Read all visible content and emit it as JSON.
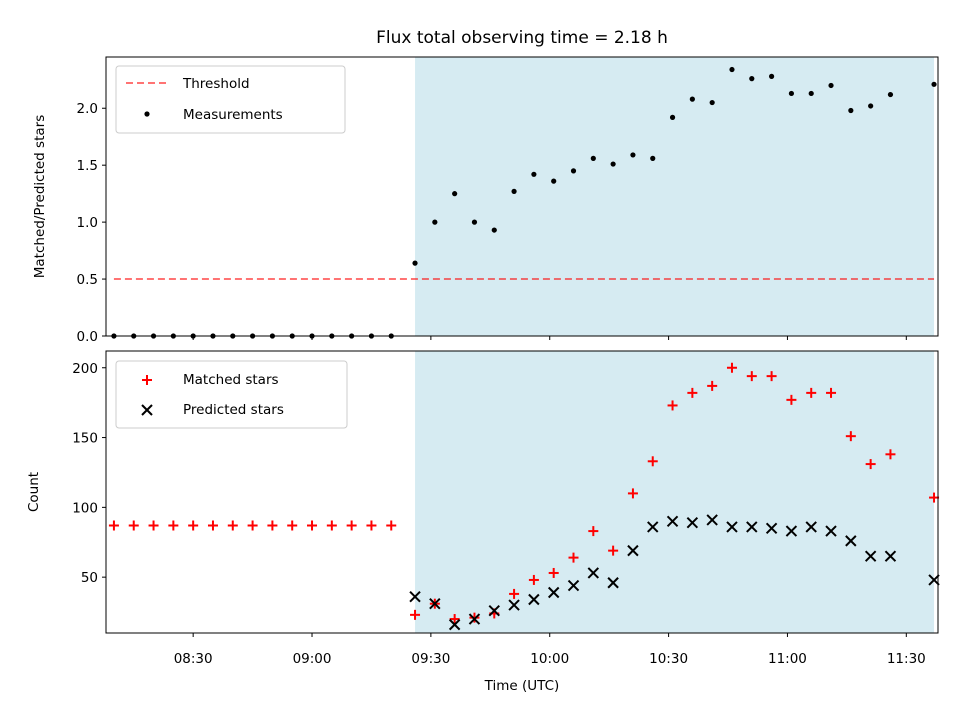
{
  "figure": {
    "title": "Flux total observing time = 2.18 h"
  },
  "colors": {
    "highlight": "#add8e6",
    "threshold": "#ff0000",
    "measurements": "#000000",
    "matched": "#ff0000",
    "predicted": "#000000"
  },
  "chart_data": [
    {
      "type": "scatter",
      "ylabel": "Matched/Predicted stars",
      "xlabel": "",
      "ylim": [
        0,
        2.45
      ],
      "xlim": [
        "08:08",
        "11:38"
      ],
      "yticks": [
        0,
        0.5,
        1.0,
        1.5,
        2.0
      ],
      "ytick_labels": [
        "0.0",
        "0.5",
        "1.0",
        "1.5",
        "2.0"
      ],
      "grid": false,
      "legend": "upper left",
      "highlight_region": [
        "09:26",
        "11:37"
      ],
      "threshold": {
        "name": "Threshold",
        "y": 0.5,
        "x_range": [
          "08:10",
          "11:37"
        ],
        "style": "dashed"
      },
      "series": [
        {
          "name": "Measurements",
          "marker": "dot",
          "x": [
            "08:10",
            "08:15",
            "08:20",
            "08:25",
            "08:30",
            "08:35",
            "08:40",
            "08:45",
            "08:50",
            "08:55",
            "09:00",
            "09:05",
            "09:10",
            "09:15",
            "09:20",
            "09:26",
            "09:31",
            "09:36",
            "09:41",
            "09:46",
            "09:51",
            "09:56",
            "10:01",
            "10:06",
            "10:11",
            "10:16",
            "10:21",
            "10:26",
            "10:31",
            "10:36",
            "10:41",
            "10:46",
            "10:51",
            "10:56",
            "11:01",
            "11:06",
            "11:11",
            "11:16",
            "11:21",
            "11:26",
            "11:37"
          ],
          "y": [
            0,
            0,
            0,
            0,
            0,
            0,
            0,
            0,
            0,
            0,
            0,
            0,
            0,
            0,
            0,
            0.64,
            1.0,
            1.25,
            1.0,
            0.93,
            1.27,
            1.42,
            1.36,
            1.45,
            1.56,
            1.51,
            1.59,
            1.56,
            1.92,
            2.08,
            2.05,
            2.34,
            2.26,
            2.28,
            2.13,
            2.13,
            2.2,
            1.98,
            2.02,
            2.12,
            2.21
          ]
        }
      ]
    },
    {
      "type": "scatter",
      "ylabel": "Count",
      "xlabel": "Time (UTC)",
      "ylim": [
        10,
        212
      ],
      "xlim": [
        "08:08",
        "11:38"
      ],
      "yticks": [
        50,
        100,
        150,
        200
      ],
      "ytick_labels": [
        "50",
        "100",
        "150",
        "200"
      ],
      "xticks": [
        "08:30",
        "09:00",
        "09:30",
        "10:00",
        "10:30",
        "11:00",
        "11:30"
      ],
      "grid": false,
      "legend": "upper left",
      "highlight_region": [
        "09:26",
        "11:37"
      ],
      "series": [
        {
          "name": "Matched stars",
          "marker": "plus",
          "x": [
            "08:10",
            "08:15",
            "08:20",
            "08:25",
            "08:30",
            "08:35",
            "08:40",
            "08:45",
            "08:50",
            "08:55",
            "09:00",
            "09:05",
            "09:10",
            "09:15",
            "09:20",
            "09:26",
            "09:31",
            "09:36",
            "09:41",
            "09:46",
            "09:51",
            "09:56",
            "10:01",
            "10:06",
            "10:11",
            "10:16",
            "10:21",
            "10:26",
            "10:31",
            "10:36",
            "10:41",
            "10:46",
            "10:51",
            "10:56",
            "11:01",
            "11:06",
            "11:11",
            "11:16",
            "11:21",
            "11:26",
            "11:37"
          ],
          "y": [
            87,
            87,
            87,
            87,
            87,
            87,
            87,
            87,
            87,
            87,
            87,
            87,
            87,
            87,
            87,
            23,
            31,
            20,
            21,
            24,
            38,
            48,
            53,
            64,
            83,
            69,
            110,
            133,
            173,
            182,
            187,
            200,
            194,
            194,
            177,
            182,
            182,
            151,
            131,
            138,
            107
          ]
        },
        {
          "name": "Predicted stars",
          "marker": "x",
          "x": [
            "09:26",
            "09:31",
            "09:36",
            "09:41",
            "09:46",
            "09:51",
            "09:56",
            "10:01",
            "10:06",
            "10:11",
            "10:16",
            "10:21",
            "10:26",
            "10:31",
            "10:36",
            "10:41",
            "10:46",
            "10:51",
            "10:56",
            "11:01",
            "11:06",
            "11:11",
            "11:16",
            "11:21",
            "11:26",
            "11:37"
          ],
          "y": [
            36,
            31,
            16,
            20,
            26,
            30,
            34,
            39,
            44,
            53,
            46,
            69,
            86,
            90,
            89,
            91,
            86,
            86,
            85,
            83,
            86,
            83,
            76,
            65,
            65,
            48
          ]
        }
      ]
    }
  ]
}
